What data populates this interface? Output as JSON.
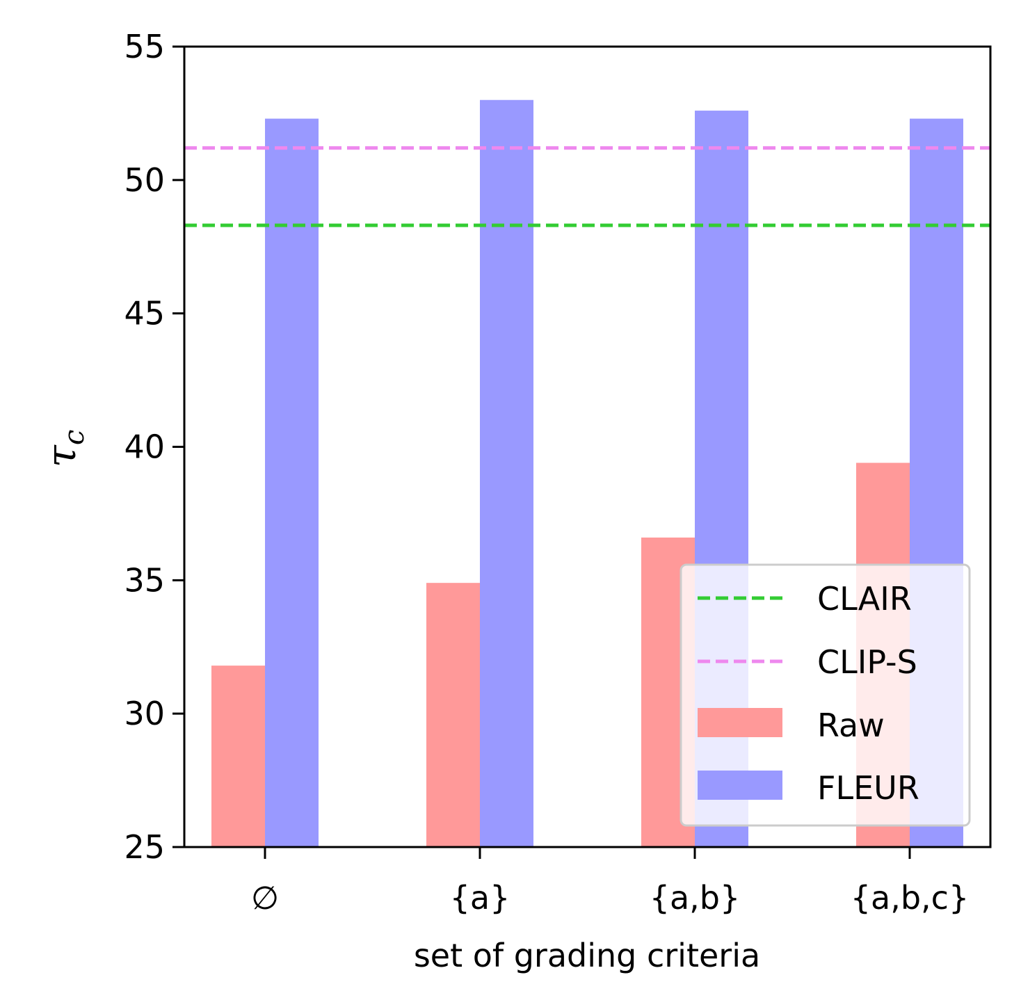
{
  "chart_data": {
    "type": "bar",
    "categories": [
      "∅",
      "{a}",
      "{a,b}",
      "{a,b,c}"
    ],
    "series": [
      {
        "name": "Raw",
        "values": [
          31.8,
          34.9,
          36.6,
          39.4
        ],
        "color": "#ff9999"
      },
      {
        "name": "FLEUR",
        "values": [
          52.3,
          53.0,
          52.6,
          52.3
        ],
        "color": "#9999ff"
      }
    ],
    "reference_lines": [
      {
        "name": "CLAIR",
        "value": 48.3,
        "color": "#33cc33",
        "style": "dashed"
      },
      {
        "name": "CLIP-S",
        "value": 51.2,
        "color": "#ee88ee",
        "style": "dashed"
      }
    ],
    "xlabel": "set of grading criteria",
    "ylabel": "τ",
    "ylabel_subscript": "c",
    "ylim": [
      25,
      55
    ],
    "yticks": [
      "25",
      "30",
      "35",
      "40",
      "45",
      "50",
      "55"
    ],
    "grid": false,
    "legend_position": "lower-right"
  }
}
